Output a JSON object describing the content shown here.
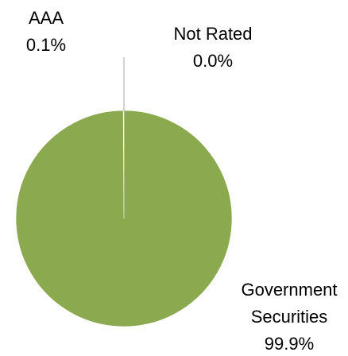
{
  "chart_data": {
    "type": "pie",
    "title": "",
    "slices": [
      {
        "name": "Government Securities",
        "name_lines": [
          "Government",
          "Securities"
        ],
        "label": "99.9%",
        "value": 99.9,
        "color": "#8ba94f"
      },
      {
        "name": "AAA",
        "name_lines": [
          "AAA"
        ],
        "label": "0.1%",
        "value": 0.1,
        "color": "#c9d6b0"
      },
      {
        "name": "Not Rated",
        "name_lines": [
          "Not Rated"
        ],
        "label": "0.0%",
        "value": 0.0,
        "color": "#8ba94f"
      }
    ],
    "legend": "none",
    "data_labels": "outside"
  }
}
